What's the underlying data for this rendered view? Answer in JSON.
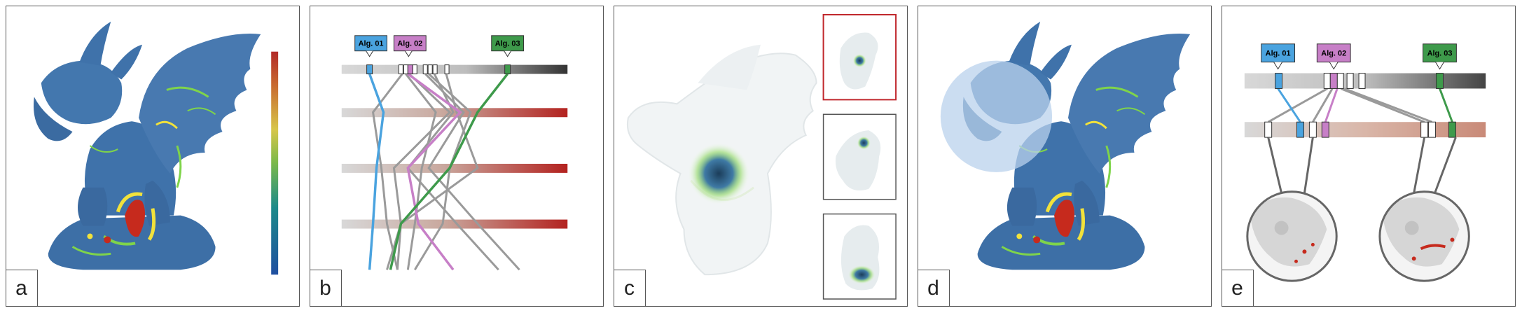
{
  "panels": [
    {
      "label": "a"
    },
    {
      "label": "b"
    },
    {
      "label": "c"
    },
    {
      "label": "d"
    },
    {
      "label": "e"
    }
  ],
  "algorithms": [
    {
      "label": "Alg. 01",
      "color": "#4aa3df"
    },
    {
      "label": "Alg. 02",
      "color": "#c77fc7"
    },
    {
      "label": "Alg. 03",
      "color": "#3e9a4b"
    }
  ],
  "colors": {
    "surface": "#3d6fa6",
    "hotspot_green": "#7fd44a",
    "hotspot_yellow": "#f2e23b",
    "hotspot_red": "#c62a1d",
    "lens": "#b9d2ec",
    "gray_line": "#9a9a9a",
    "highlight_frame": "#c0262b"
  },
  "icons": [
    "gargoyle-model-image",
    "colormap-legend",
    "similarity-axes",
    "view-thumbnail",
    "lens-circle",
    "zoom-circle"
  ]
}
